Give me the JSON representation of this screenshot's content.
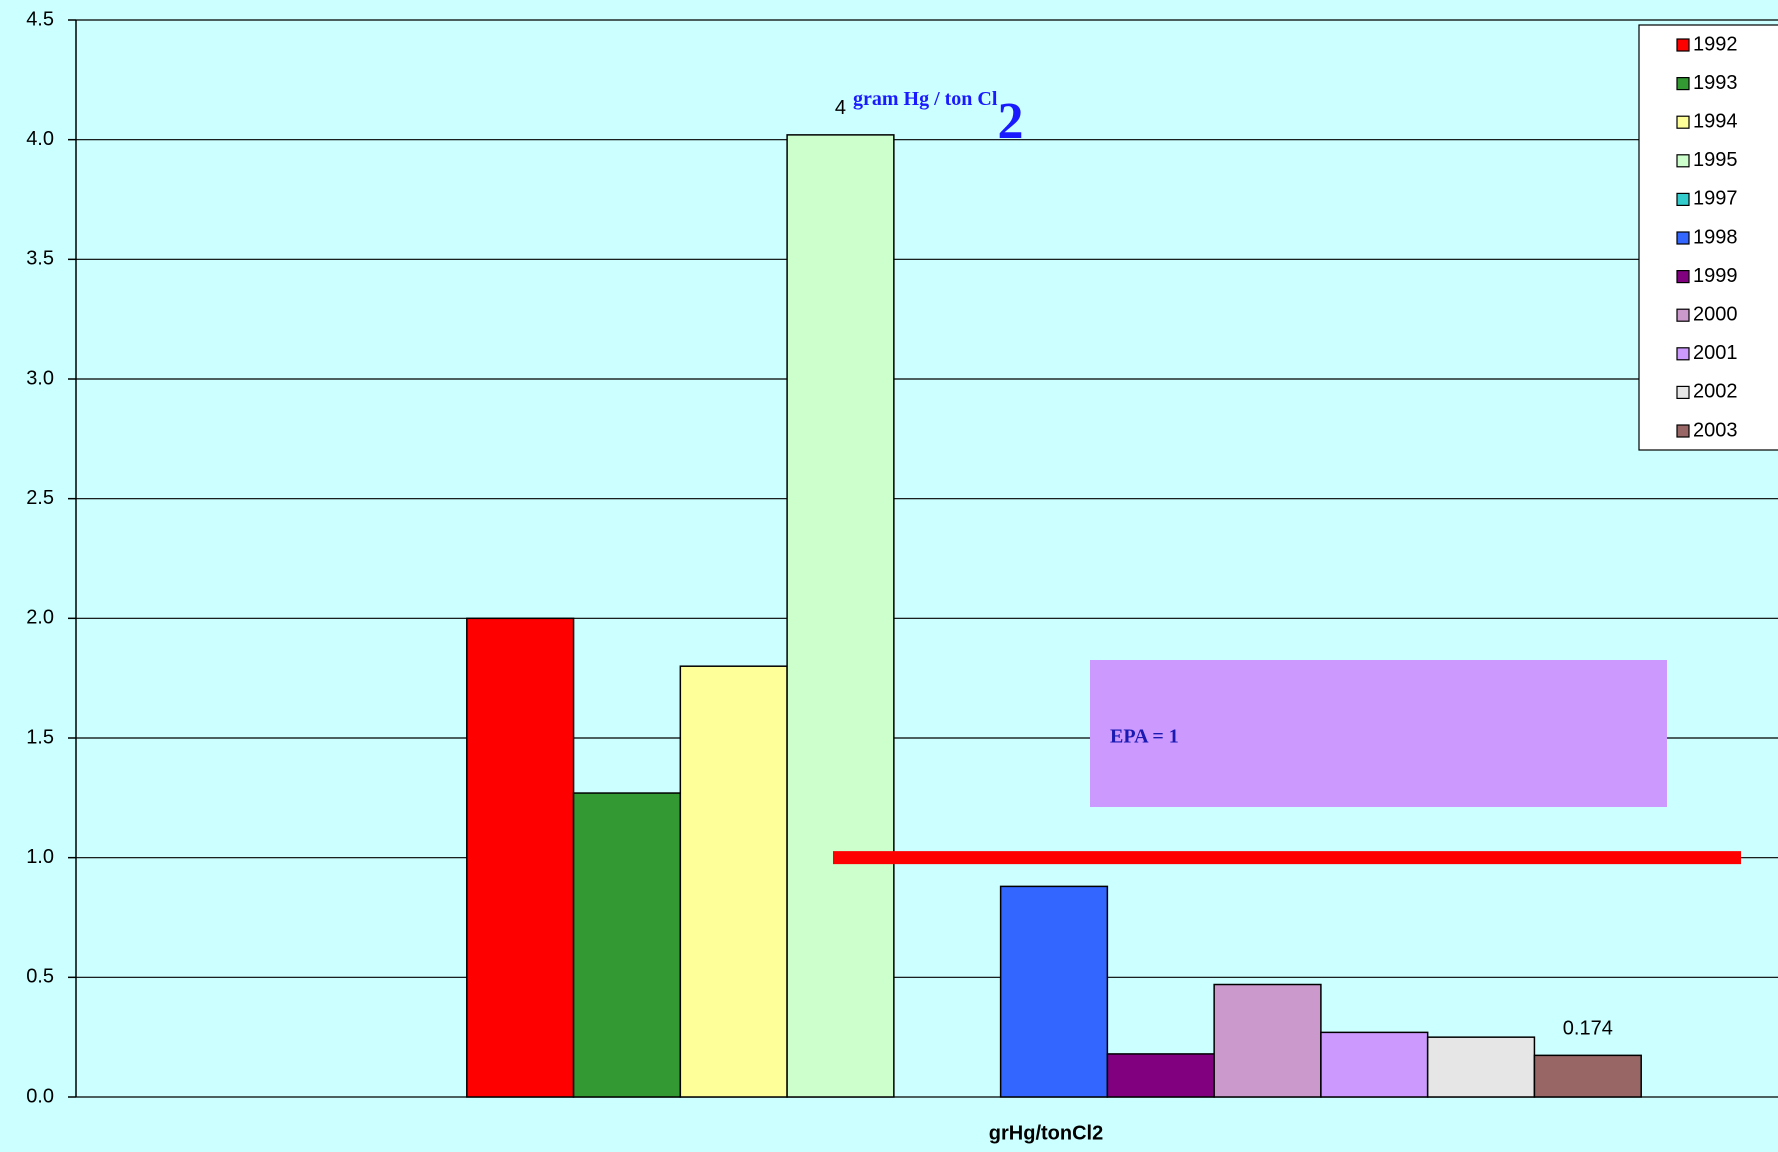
{
  "chart_data": {
    "type": "bar",
    "title": "gram Hg / ton Cl",
    "title_subscript": "2",
    "annotation": "EPA = 1",
    "x_label": "grHg/tonCl2",
    "reference_line": {
      "value": 1,
      "color": "#ff0000"
    },
    "categories": [
      "grHg/tonCl2"
    ],
    "series": [
      {
        "name": "1992",
        "color": "#ff0000",
        "values": [
          2.0
        ]
      },
      {
        "name": "1993",
        "color": "#339933",
        "values": [
          1.27
        ]
      },
      {
        "name": "1994",
        "color": "#ffff99",
        "values": [
          1.8
        ]
      },
      {
        "name": "1995",
        "color": "#ccffcc",
        "values": [
          4.02
        ],
        "value_labels": [
          "4"
        ]
      },
      {
        "name": "1997",
        "color": "#33cccc",
        "values": [
          null
        ]
      },
      {
        "name": "1998",
        "color": "#3366ff",
        "values": [
          0.88
        ]
      },
      {
        "name": "1999",
        "color": "#800080",
        "values": [
          0.18
        ]
      },
      {
        "name": "2000",
        "color": "#cc99cc",
        "values": [
          0.47
        ]
      },
      {
        "name": "2001",
        "color": "#cc99ff",
        "values": [
          0.27
        ]
      },
      {
        "name": "2002",
        "color": "#e6e6e6",
        "values": [
          0.25
        ]
      },
      {
        "name": "2003",
        "color": "#996666",
        "values": [
          0.174
        ],
        "value_labels": [
          "0.174"
        ]
      }
    ],
    "ylim": [
      0,
      4.5
    ],
    "yticks": [
      {
        "value": 0,
        "label": "0.0"
      },
      {
        "value": 0.5,
        "label": "0.5"
      },
      {
        "value": 1,
        "label": "1.0"
      },
      {
        "value": 1.5,
        "label": "1.5"
      },
      {
        "value": 2,
        "label": "2.0"
      },
      {
        "value": 2.5,
        "label": "2.5"
      },
      {
        "value": 3,
        "label": "3.0"
      },
      {
        "value": 3.5,
        "label": "3.5"
      },
      {
        "value": 4,
        "label": "4.0"
      },
      {
        "value": 4.5,
        "label": "4.5"
      }
    ],
    "grid": true,
    "legend": "upper right",
    "background": "#ccffff"
  }
}
